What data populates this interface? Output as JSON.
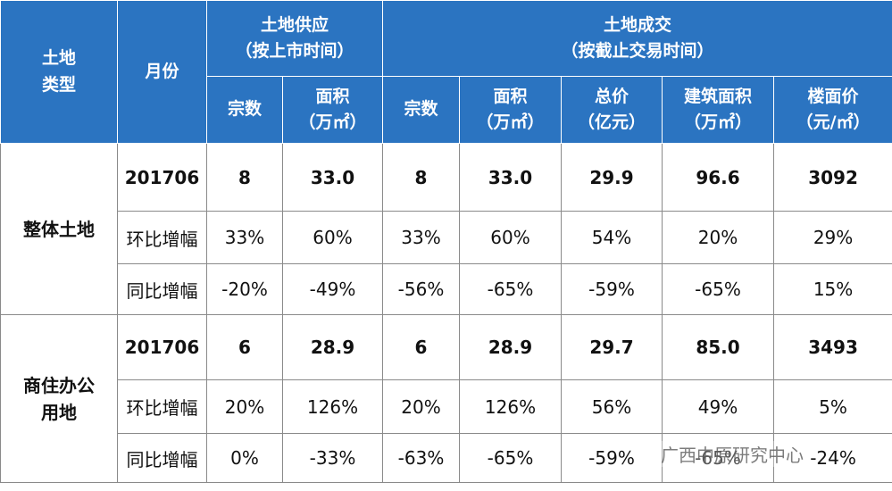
{
  "table": {
    "type_header": "土地类型",
    "month_header": "月份",
    "groups": [
      {
        "title": "土地供应",
        "subtitle": "（按上市时间）"
      },
      {
        "title": "土地成交",
        "subtitle": "（按截止交易时间）"
      }
    ],
    "columns": [
      {
        "name": "宗数"
      },
      {
        "name": "面积",
        "unit": "（万㎡）"
      },
      {
        "name": "宗数"
      },
      {
        "name": "面积",
        "unit": "（万㎡）"
      },
      {
        "name": "总价",
        "unit": "（亿元）"
      },
      {
        "name": "建筑面积",
        "unit": "（万㎡）"
      },
      {
        "name": "楼面价",
        "unit": "（元/㎡）"
      }
    ],
    "sections": [
      {
        "type": "整体土地",
        "rows": [
          {
            "label": "201706",
            "cells": [
              "8",
              "33.0",
              "8",
              "33.0",
              "29.9",
              "96.6",
              "3092"
            ]
          },
          {
            "label": "环比增幅",
            "cells": [
              "33%",
              "60%",
              "33%",
              "60%",
              "54%",
              "20%",
              "29%"
            ]
          },
          {
            "label": "同比增幅",
            "cells": [
              "-20%",
              "-49%",
              "-56%",
              "-65%",
              "-59%",
              "-65%",
              "15%"
            ]
          }
        ]
      },
      {
        "type": "商住办公用地",
        "rows": [
          {
            "label": "201706",
            "cells": [
              "6",
              "28.9",
              "6",
              "28.9",
              "29.7",
              "85.0",
              "3493"
            ]
          },
          {
            "label": "环比增幅",
            "cells": [
              "20%",
              "126%",
              "20%",
              "126%",
              "56%",
              "49%",
              "5%"
            ]
          },
          {
            "label": "同比增幅",
            "cells": [
              "0%",
              "-33%",
              "-63%",
              "-65%",
              "-59%",
              "-65%",
              "-24%"
            ]
          }
        ]
      }
    ]
  },
  "watermark": "广西中原研究中心"
}
